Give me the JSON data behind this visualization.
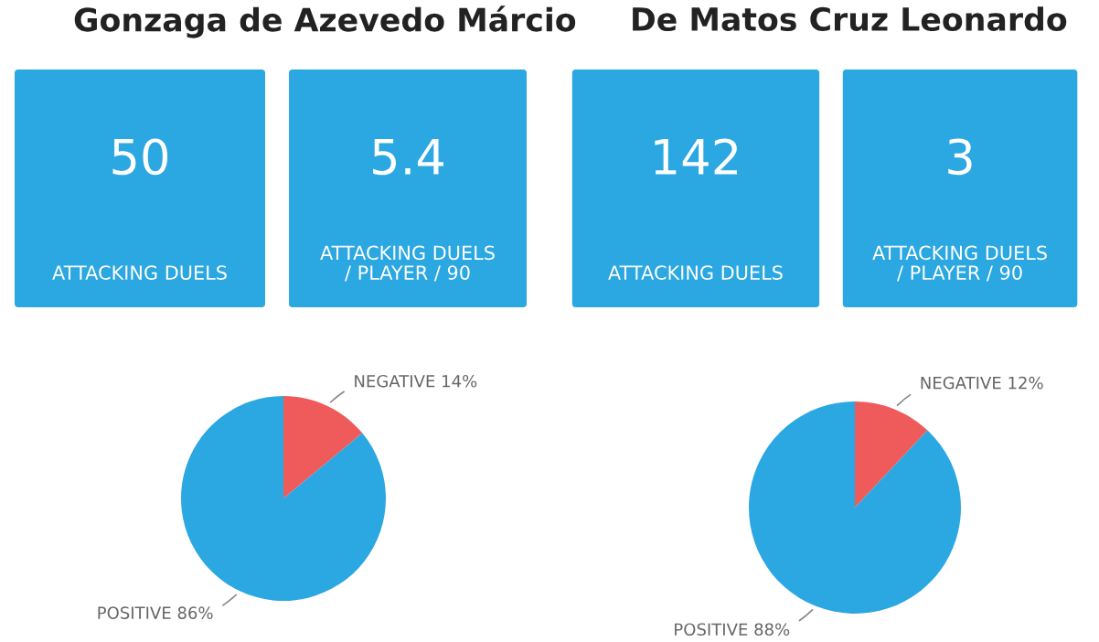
{
  "chart_data": [
    {
      "type": "other",
      "title": "Gonzaga de Azevedo Márcio",
      "annotations": [
        "50",
        "ATTACKING DUELS",
        "5.4",
        "ATTACKING DUELS\n/ PLAYER / 90"
      ]
    },
    {
      "type": "other",
      "title": "De Matos Cruz Leonardo",
      "annotations": [
        "142",
        "ATTACKING DUELS",
        "3",
        "ATTACKING DUELS\n/ PLAYER / 90"
      ]
    },
    {
      "type": "pie",
      "categories": [
        "NEGATIVE",
        "POSITIVE"
      ],
      "values": [
        14,
        86
      ],
      "colors": [
        "#ef5b5b",
        "#2ba7e1"
      ],
      "value_labels": [
        "14%",
        "86%"
      ]
    },
    {
      "type": "pie",
      "categories": [
        "NEGATIVE",
        "POSITIVE"
      ],
      "values": [
        12,
        88
      ],
      "colors": [
        "#ef5b5b",
        "#2ba7e1"
      ],
      "value_labels": [
        "12%",
        "88%"
      ]
    }
  ]
}
